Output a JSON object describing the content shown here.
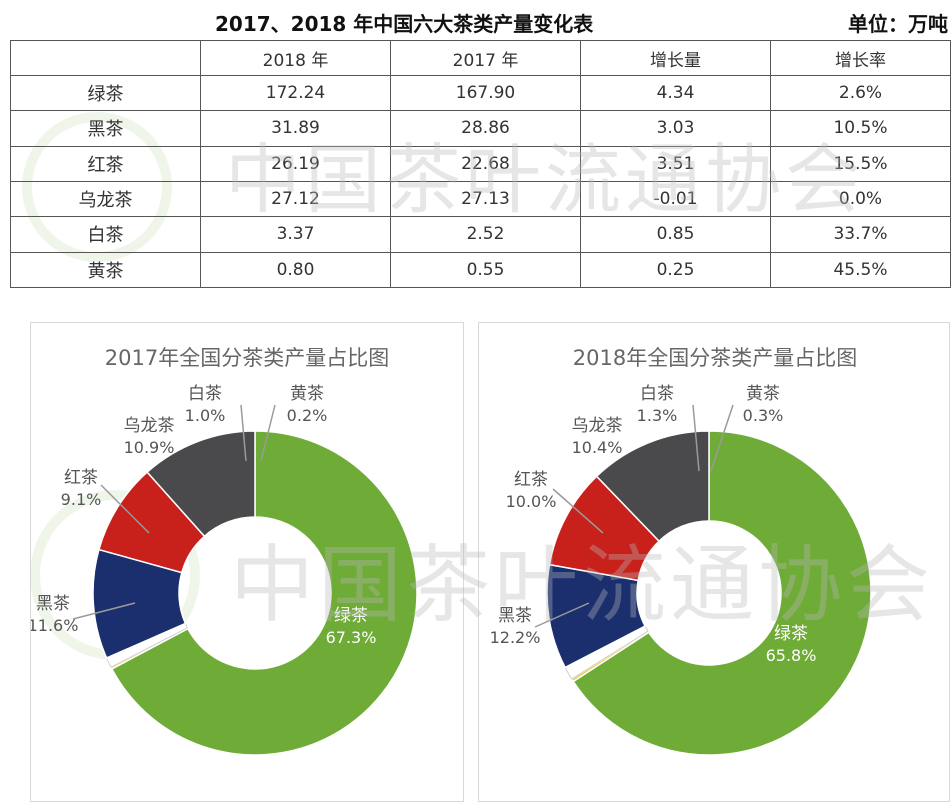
{
  "title": "2017、2018 年中国六大茶类产量变化表",
  "unit": "单位：万吨",
  "watermark": "中国茶叶流通协会",
  "table": {
    "headers": [
      "",
      "2018 年",
      "2017 年",
      "增长量",
      "增长率"
    ],
    "rows": [
      [
        "绿茶",
        "172.24",
        "167.90",
        "4.34",
        "2.6%"
      ],
      [
        "黑茶",
        "31.89",
        "28.86",
        "3.03",
        "10.5%"
      ],
      [
        "红茶",
        "26.19",
        "22.68",
        "3.51",
        "15.5%"
      ],
      [
        "乌龙茶",
        "27.12",
        "27.13",
        "-0.01",
        "0.0%"
      ],
      [
        "白茶",
        "3.37",
        "2.52",
        "0.85",
        "33.7%"
      ],
      [
        "黄茶",
        "0.80",
        "0.55",
        "0.25",
        "45.5%"
      ]
    ]
  },
  "colors": {
    "绿茶": "#6fab37",
    "黑茶": "#4a4a4c",
    "红茶": "#c8211b",
    "乌龙茶": "#1b2f6e",
    "白茶": "#ffffff",
    "黄茶": "#e8d23a"
  },
  "chart_data": [
    {
      "type": "pie",
      "title": "2017年全国分茶类产量占比图",
      "categories": [
        "绿茶",
        "黄茶",
        "白茶",
        "乌龙茶",
        "红茶",
        "黑茶"
      ],
      "values": [
        67.3,
        0.2,
        1.0,
        10.9,
        9.1,
        11.6
      ],
      "labels": [
        "67.3%",
        "0.2%",
        "1.0%",
        "10.9%",
        "9.1%",
        "11.6%"
      ],
      "donut": true
    },
    {
      "type": "pie",
      "title": "2018年全国分茶类产量占比图",
      "categories": [
        "绿茶",
        "黄茶",
        "白茶",
        "乌龙茶",
        "红茶",
        "黑茶"
      ],
      "values": [
        65.8,
        0.3,
        1.3,
        10.4,
        10.0,
        12.2
      ],
      "labels": [
        "65.8%",
        "0.3%",
        "1.3%",
        "10.4%",
        "10.0%",
        "12.2%"
      ],
      "donut": true
    }
  ]
}
